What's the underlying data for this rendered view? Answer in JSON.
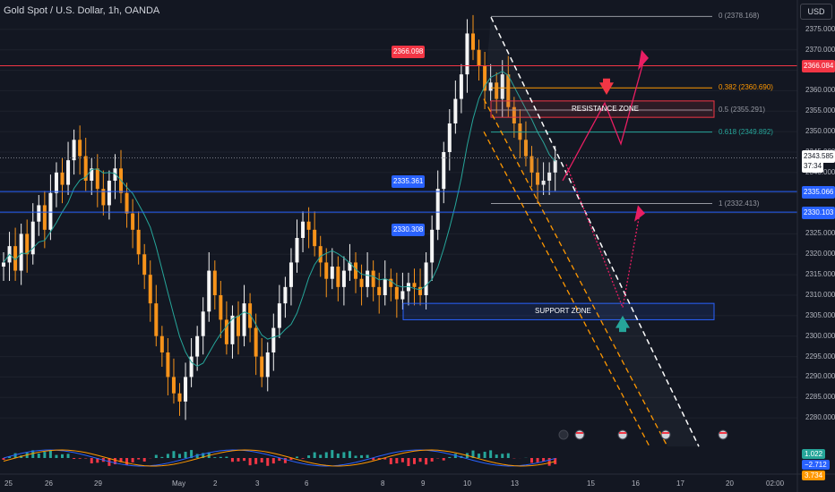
{
  "header": {
    "title": "Gold Spot / U.S. Dollar, 1h, OANDA",
    "currency": "USD"
  },
  "chart_data": {
    "type": "candlestick",
    "y_axis": {
      "ylim": [
        2275,
        2380
      ],
      "ticks": [
        "2375.000",
        "2370.000",
        "2365.000",
        "2360.000",
        "2355.000",
        "2350.000",
        "2345.000",
        "2340.000",
        "2335.000",
        "2330.000",
        "2325.000",
        "2320.000",
        "2315.000",
        "2310.000",
        "2305.000",
        "2300.000",
        "2295.000",
        "2290.000",
        "2285.000",
        "2280.000"
      ]
    },
    "x_axis": {
      "tick_labels": [
        "25",
        "26",
        "29",
        "May",
        "2",
        "3",
        "6",
        "8",
        "9",
        "10",
        "13",
        "15",
        "16",
        "17",
        "20",
        "02:00"
      ]
    },
    "horizontal_levels": [
      {
        "label": "2366.098",
        "value": 2366.098,
        "color": "#f23645"
      },
      {
        "label": "2335.361",
        "value": 2335.361,
        "color": "#2962ff"
      },
      {
        "label": "2330.308",
        "value": 2330.308,
        "color": "#2962ff"
      }
    ],
    "price_scale_tags": [
      {
        "label": "2366.084",
        "value": 2366.084,
        "color": "#f23645"
      },
      {
        "label": "2335.066",
        "value": 2335.066,
        "color": "#2962ff"
      },
      {
        "label": "2330.103",
        "value": 2330.103,
        "color": "#2962ff"
      }
    ],
    "current_price": {
      "price": "2343.585",
      "countdown": "37:34",
      "value": 2343.585
    },
    "fibonacci": [
      {
        "label": "0 (2378.168)",
        "value": 2378.168,
        "color": "#9598a1"
      },
      {
        "label": "0.382 (2360.690)",
        "value": 2360.69,
        "color": "#ff9800"
      },
      {
        "label": "0.5 (2355.291)",
        "value": 2355.291,
        "color": "#9598a1"
      },
      {
        "label": "0.618 (2349.892)",
        "value": 2349.892,
        "color": "#26a69a"
      },
      {
        "label": "1 (2332.413)",
        "value": 2332.413,
        "color": "#9598a1"
      }
    ],
    "zones": [
      {
        "label": "RESISTANCE ZONE",
        "top": 2357.5,
        "bottom": 2353.5,
        "color": "#f23645"
      },
      {
        "label": "SUPPORT ZONE",
        "top": 2308.0,
        "bottom": 2304.0,
        "color": "#2962ff"
      }
    ],
    "indicator_tags": [
      {
        "label": "1.022",
        "color": "#26a69a"
      },
      {
        "label": "−2.712",
        "color": "#2962ff"
      },
      {
        "label": "3.734",
        "color": "#ff9800"
      }
    ],
    "closes": [
      2318,
      2322,
      2316,
      2325,
      2320,
      2328,
      2332,
      2326,
      2335,
      2340,
      2337,
      2343,
      2348,
      2344,
      2338,
      2341,
      2336,
      2332,
      2338,
      2341,
      2335,
      2330,
      2326,
      2320,
      2315,
      2308,
      2300,
      2296,
      2290,
      2286,
      2284,
      2290,
      2295,
      2300,
      2306,
      2316,
      2310,
      2304,
      2298,
      2305,
      2300,
      2308,
      2302,
      2295,
      2290,
      2296,
      2302,
      2308,
      2312,
      2318,
      2324,
      2328,
      2326,
      2322,
      2318,
      2314,
      2317,
      2312,
      2316,
      2318,
      2314,
      2312,
      2316,
      2312,
      2310,
      2314,
      2312,
      2309,
      2311,
      2313,
      2312,
      2310,
      2318,
      2326,
      2336,
      2345,
      2352,
      2358,
      2364,
      2374,
      2370,
      2366,
      2360,
      2362,
      2358,
      2364,
      2356,
      2352,
      2348,
      2344,
      2340,
      2337,
      2338,
      2340,
      2343
    ]
  }
}
